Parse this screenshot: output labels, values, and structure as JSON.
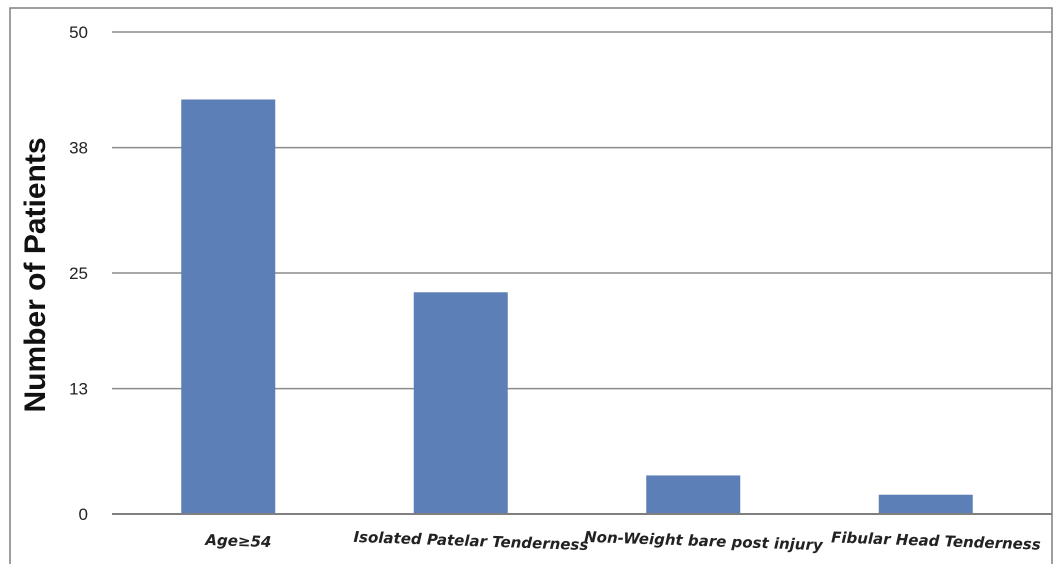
{
  "chart_data": {
    "type": "bar",
    "categories": [
      "Age≥54",
      "Isolated Patelar Tenderness",
      "Non-Weight bare post injury",
      "Fibular Head Tenderness"
    ],
    "values": [
      43,
      23,
      4,
      2
    ],
    "title": "",
    "xlabel": "",
    "ylabel": "Number  of Patients",
    "ylim": [
      0,
      50
    ],
    "yticks": [
      0,
      13,
      25,
      38,
      50
    ],
    "grid": true,
    "legend": "none",
    "bar_color": "#5b7fb6"
  }
}
